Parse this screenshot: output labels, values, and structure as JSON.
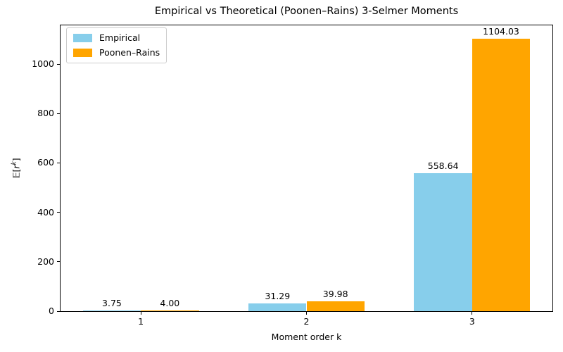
{
  "figure": {
    "ylabel_parts": {
      "open": "𝔼[",
      "var": "r",
      "sup": "k",
      "close": "]"
    }
  },
  "chart_data": {
    "type": "bar",
    "title": "Empirical vs Theoretical (Poonen–Rains) 3-Selmer Moments",
    "xlabel": "Moment order k",
    "ylabel": "𝔼[rᵏ]",
    "categories": [
      "1",
      "2",
      "3"
    ],
    "series": [
      {
        "name": "Empirical",
        "color": "#87CEEB",
        "values": [
          3.75,
          31.29,
          558.64
        ],
        "value_labels": [
          "3.75",
          "31.29",
          "558.64"
        ]
      },
      {
        "name": "Poonen–Rains",
        "color": "#FFA500",
        "values": [
          4.0,
          39.98,
          1104.03
        ],
        "value_labels": [
          "4.00",
          "39.98",
          "1104.03"
        ]
      }
    ],
    "yticks": [
      0,
      200,
      400,
      600,
      800,
      1000
    ],
    "ylim": [
      0,
      1157
    ],
    "xlim": [
      -0.485,
      2.485
    ],
    "bar_width": 0.35,
    "grid": false,
    "legend_position": "upper left",
    "background": "#ffffff"
  }
}
